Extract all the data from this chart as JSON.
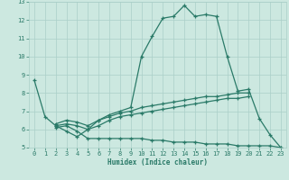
{
  "xlabel": "Humidex (Indice chaleur)",
  "bg_color": "#cce8e0",
  "line_color": "#2a7a68",
  "grid_color": "#aacfc8",
  "xlim": [
    -0.5,
    23.5
  ],
  "ylim": [
    5,
    13
  ],
  "xticks": [
    0,
    1,
    2,
    3,
    4,
    5,
    6,
    7,
    8,
    9,
    10,
    11,
    12,
    13,
    14,
    15,
    16,
    17,
    18,
    19,
    20,
    21,
    22,
    23
  ],
  "yticks": [
    5,
    6,
    7,
    8,
    9,
    10,
    11,
    12,
    13
  ],
  "series": [
    {
      "x": [
        0,
        1,
        2,
        3,
        4,
        5,
        6,
        7,
        8,
        9,
        10,
        11,
        12,
        13,
        14,
        15,
        16,
        17,
        18,
        19,
        20,
        21,
        22,
        23
      ],
      "y": [
        8.7,
        6.7,
        6.2,
        5.9,
        5.6,
        6.0,
        6.5,
        6.8,
        7.0,
        7.2,
        10.0,
        11.1,
        12.1,
        12.2,
        12.8,
        12.2,
        12.3,
        12.2,
        10.0,
        8.1,
        8.2,
        6.6,
        5.7,
        5.0
      ]
    },
    {
      "x": [
        2,
        3,
        4,
        5,
        6,
        7,
        8,
        9,
        10,
        11,
        12,
        13,
        14,
        15,
        16,
        17,
        18,
        19,
        20
      ],
      "y": [
        6.3,
        6.5,
        6.4,
        6.2,
        6.5,
        6.7,
        6.9,
        7.0,
        7.2,
        7.3,
        7.4,
        7.5,
        7.6,
        7.7,
        7.8,
        7.8,
        7.9,
        8.0,
        8.0
      ]
    },
    {
      "x": [
        2,
        3,
        4,
        5,
        6,
        7,
        8,
        9,
        10,
        11,
        12,
        13,
        14,
        15,
        16,
        17,
        18,
        19,
        20
      ],
      "y": [
        6.2,
        6.3,
        6.2,
        6.0,
        6.2,
        6.5,
        6.7,
        6.8,
        6.9,
        7.0,
        7.1,
        7.2,
        7.3,
        7.4,
        7.5,
        7.6,
        7.7,
        7.7,
        7.8
      ]
    },
    {
      "x": [
        2,
        3,
        4,
        5,
        6,
        7,
        8,
        9,
        10,
        11,
        12,
        13,
        14,
        15,
        16,
        17,
        18,
        19,
        20,
        21,
        22,
        23
      ],
      "y": [
        6.1,
        6.2,
        5.9,
        5.5,
        5.5,
        5.5,
        5.5,
        5.5,
        5.5,
        5.4,
        5.4,
        5.3,
        5.3,
        5.3,
        5.2,
        5.2,
        5.2,
        5.1,
        5.1,
        5.1,
        5.1,
        5.0
      ]
    }
  ]
}
